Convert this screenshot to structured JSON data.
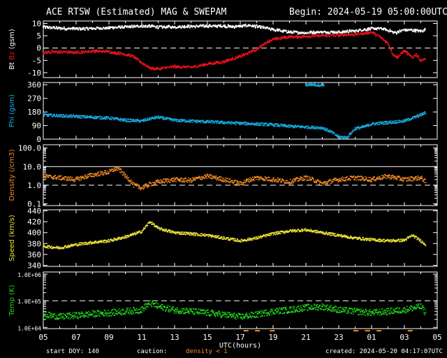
{
  "header": {
    "title": "ACE RTSW (Estimated) MAG & SWEPAM",
    "begin": "Begin: 2024-05-19 05:00:00UTC"
  },
  "footer": {
    "start_doy": "start DOY: 140",
    "caution": "caution:",
    "density_note": "density < 1",
    "created": "created: 2024-05-20 04:17:07UTC"
  },
  "colors": {
    "background": "#000000",
    "axis": "#ffffff",
    "bt": "#ffffff",
    "bz": "#e8101a",
    "phi": "#16b4e8",
    "density": "#f08a24",
    "speed": "#f2e63a",
    "temp": "#22d41e"
  },
  "chart_data": [
    {
      "type": "line",
      "id": "mag",
      "ylabel_parts": [
        "Bt",
        "Bz",
        "(gsm)"
      ],
      "ylim": [
        -12,
        11
      ],
      "yticks": [
        10,
        5,
        0,
        -5,
        -10
      ],
      "ytick_labels": [
        "10",
        "5",
        "0",
        "-5",
        "-10"
      ],
      "reference_lines": [
        0
      ],
      "series": [
        {
          "name": "Bt",
          "color_key": "bt",
          "x": [
            0,
            1,
            2,
            3,
            4,
            5,
            5.5,
            6,
            6.5,
            7,
            8,
            9,
            10,
            11,
            11.5,
            12,
            12.5,
            13,
            13.5,
            14,
            15,
            16,
            17,
            18,
            19,
            19.5,
            20,
            20.5,
            21,
            21.5,
            22,
            22.5,
            23,
            23.3
          ],
          "y": [
            8.5,
            8,
            7.8,
            8,
            8.2,
            8.5,
            8.7,
            9,
            8.8,
            8.5,
            8.6,
            8.8,
            9,
            8.9,
            8.7,
            8.8,
            9.2,
            8.8,
            8.2,
            7.5,
            6.5,
            6.2,
            6.5,
            6.5,
            7,
            7.5,
            7.8,
            8,
            7.2,
            6.2,
            7.5,
            7.2,
            6.8,
            7.5
          ]
        },
        {
          "name": "Bz",
          "color_key": "bz",
          "x": [
            0,
            1,
            2,
            3,
            4,
            5,
            5.5,
            6,
            6.2,
            6.5,
            7,
            8,
            9,
            10,
            11,
            12,
            12.5,
            13,
            13.5,
            14,
            15,
            16,
            17,
            18,
            19,
            19.5,
            20,
            20.5,
            21,
            21.3,
            21.6,
            22,
            22.5,
            22.7,
            23,
            23.3
          ],
          "y": [
            -1.8,
            -1.5,
            -1.8,
            -1.2,
            -1.5,
            -2.5,
            -3.5,
            -6,
            -6.8,
            -8,
            -8.5,
            -7.5,
            -7.8,
            -6.5,
            -5.5,
            -3.5,
            -2,
            -0.5,
            2,
            3.5,
            4.5,
            4.8,
            5,
            5.2,
            5.5,
            6,
            6.5,
            4.5,
            2,
            -2.5,
            -3.8,
            -1,
            -4,
            -2.5,
            -5,
            -4.5
          ]
        }
      ]
    },
    {
      "type": "scatter",
      "id": "phi",
      "ylabel": "Phi (gsm)",
      "ylim": [
        0,
        375
      ],
      "yticks": [
        360,
        270,
        180,
        90,
        0
      ],
      "ytick_labels": [
        "360",
        "270",
        "180",
        "90",
        "0"
      ],
      "series": [
        {
          "name": "Phi",
          "color_key": "phi",
          "x": [
            0,
            1,
            2,
            3,
            4,
            5,
            6,
            6.5,
            7,
            8,
            9,
            10,
            11,
            12,
            13,
            14,
            15,
            16,
            17,
            17.5,
            18,
            18.5,
            19,
            19.5,
            20,
            21,
            22,
            23,
            23.3
          ],
          "y": [
            160,
            155,
            150,
            145,
            140,
            125,
            120,
            135,
            145,
            125,
            120,
            115,
            110,
            105,
            100,
            95,
            85,
            80,
            75,
            50,
            15,
            10,
            70,
            80,
            100,
            110,
            120,
            160,
            175
          ]
        },
        {
          "name": "Phi-upper",
          "color_key": "phi",
          "x": [
            16.0,
            16.3,
            16.6,
            16.9,
            17.1
          ],
          "y": [
            358,
            362,
            360,
            357,
            359
          ]
        }
      ]
    },
    {
      "type": "scatter",
      "id": "density",
      "ylabel": "Density (/cm3)",
      "scale": "log",
      "ylim": [
        0.08,
        150
      ],
      "yticks": [
        100,
        10,
        1,
        0.1
      ],
      "ytick_labels": [
        "100.0",
        "10.0",
        "1.0",
        "0.1"
      ],
      "reference_lines": [
        1.0
      ],
      "reference_lines_solid": [
        10.0
      ],
      "series": [
        {
          "name": "Density",
          "color_key": "density",
          "x": [
            0,
            1,
            2,
            3,
            4,
            4.5,
            5,
            5.5,
            6,
            7,
            8,
            9,
            10,
            11,
            12,
            13,
            14,
            15,
            16,
            17,
            18,
            19,
            20,
            21,
            22,
            23,
            23.3
          ],
          "y": [
            3,
            2.5,
            2,
            3.5,
            5,
            8,
            3,
            1,
            0.7,
            1.5,
            2,
            1.8,
            3,
            2,
            1.2,
            2.5,
            2,
            1.5,
            2.5,
            1.2,
            2,
            2.5,
            2,
            3,
            2,
            2.5,
            1.5
          ]
        }
      ]
    },
    {
      "type": "scatter",
      "id": "speed",
      "ylabel": "Speed (km/s)",
      "ylim": [
        338,
        442
      ],
      "yticks": [
        440,
        420,
        400,
        380,
        360,
        340
      ],
      "ytick_labels": [
        "440",
        "420",
        "400",
        "380",
        "360",
        "340"
      ],
      "series": [
        {
          "name": "Speed",
          "color_key": "speed",
          "x": [
            0,
            1,
            2,
            3,
            4,
            5,
            6,
            6.5,
            7,
            8,
            9,
            10,
            11,
            12,
            13,
            14,
            15,
            16,
            17,
            18,
            19,
            20,
            21,
            22,
            22.5,
            23,
            23.3
          ],
          "y": [
            375,
            372,
            378,
            382,
            385,
            392,
            402,
            420,
            408,
            400,
            398,
            395,
            390,
            385,
            390,
            398,
            403,
            405,
            400,
            395,
            390,
            387,
            385,
            386,
            395,
            385,
            378
          ]
        }
      ]
    },
    {
      "type": "scatter",
      "id": "temp",
      "ylabel": "Temp (K)",
      "scale": "log",
      "ylim": [
        9000,
        1200000
      ],
      "yticks": [
        1000000,
        100000,
        10000
      ],
      "ytick_labels": [
        "1.0E+06",
        "1.0E+05",
        "1.0E+04"
      ],
      "reference_lines": [
        100000
      ],
      "series": [
        {
          "name": "Temp",
          "color_key": "temp",
          "x": [
            0,
            1,
            2,
            3,
            4,
            5,
            6,
            6.5,
            7,
            8,
            9,
            10,
            11,
            12,
            13,
            14,
            15,
            16,
            17,
            18,
            19,
            20,
            21,
            22,
            23,
            23.3
          ],
          "y": [
            30000,
            25000,
            28000,
            32000,
            35000,
            40000,
            45000,
            80000,
            60000,
            45000,
            40000,
            35000,
            30000,
            25000,
            30000,
            40000,
            45000,
            55000,
            60000,
            45000,
            40000,
            35000,
            40000,
            45000,
            60000,
            35000
          ]
        }
      ]
    }
  ],
  "x_axis": {
    "label": "UTC(hours)",
    "range_hours": [
      0,
      24
    ],
    "tick_labels": [
      "05",
      "07",
      "09",
      "11",
      "13",
      "15",
      "17",
      "19",
      "21",
      "23",
      "01",
      "03",
      "05"
    ],
    "tick_step_hours": 2
  }
}
